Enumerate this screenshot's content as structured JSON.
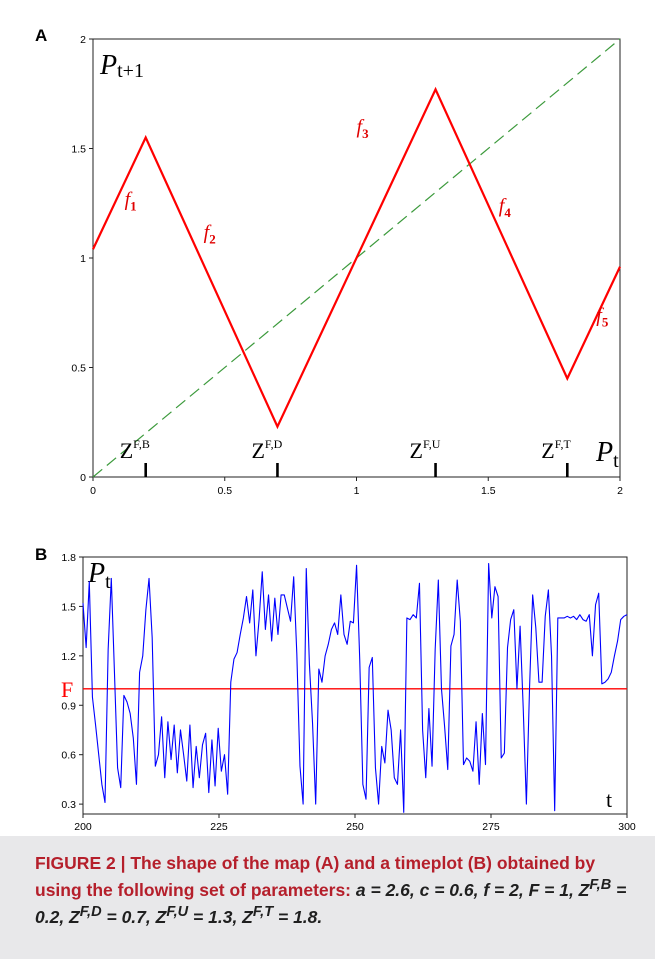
{
  "panel_a": {
    "label": "A",
    "ylabel_main": "P",
    "ylabel_sub": "t+1",
    "xlabel_main": "P",
    "xlabel_sub": "t",
    "x_ticks": [
      "0",
      "0.5",
      "1",
      "1.5",
      "2"
    ],
    "y_ticks": [
      "0",
      "0.5",
      "1",
      "1.5",
      "2"
    ],
    "piece_labels": [
      "1",
      "2",
      "3",
      "4",
      "5"
    ],
    "piece_letter": "f",
    "z_main": "Z",
    "z_sups": [
      "F,B",
      "F,D",
      "F,U",
      "F,T"
    ]
  },
  "panel_b": {
    "label": "B",
    "ylabel_main": "P",
    "ylabel_sub": "t",
    "xlabel": "t",
    "hline_label": "F",
    "x_ticks": [
      "200",
      "225",
      "250",
      "275",
      "300"
    ],
    "y_ticks": [
      "0.3",
      "0.6",
      "0.9",
      "1.2",
      "1.5",
      "1.8"
    ]
  },
  "caption": {
    "part1": "FIGURE 2 | The shape of the map (A) and a timeplot (B) obtained by using the following set of parameters:",
    "params": "a = 2.6, c = 0.6, f = 2, F = 1, Z",
    "sup1": "F,B",
    "v1": " = 0.2, Z",
    "sup2": "F,D",
    "v2": " = 0.7, Z",
    "sup3": "F,U",
    "v3": " = 1.3, Z",
    "sup4": "F,T",
    "v4": " = 1.8."
  },
  "colors": {
    "map": "#ff0000",
    "diagonal": "#3c9a3c",
    "series": "#0000ff",
    "fline": "#ff0000",
    "caption_accent": "#b51f2b"
  },
  "chart_data": [
    {
      "type": "line",
      "xlim": [
        0,
        2
      ],
      "ylim": [
        0,
        2
      ],
      "grid": false,
      "series": [
        {
          "x": [
            0,
            0.2,
            0.7,
            1.3,
            1.8,
            2
          ],
          "y": [
            1.04,
            1.55,
            0.23,
            1.77,
            0.45,
            0.96
          ]
        },
        {
          "x": [
            0,
            2
          ],
          "y": [
            0,
            2
          ]
        }
      ],
      "markers": [
        0.2,
        0.7,
        1.3,
        1.8
      ]
    },
    {
      "type": "line",
      "xlim": [
        200,
        300
      ],
      "ylim": [
        0.24,
        1.8
      ],
      "grid": false,
      "hline": 1,
      "series": [
        {
          "x_start": 200,
          "x_step": 1,
          "values": [
            1.52,
            1.25,
            1.65,
            0.95,
            0.78,
            0.6,
            0.42,
            0.31,
            1.24,
            1.67,
            1.1,
            0.52,
            0.4,
            0.96,
            0.92,
            0.85,
            0.7,
            0.42,
            1.1,
            1.2,
            1.48,
            1.67,
            1.31,
            0.53,
            0.6,
            0.83,
            0.46,
            0.8,
            0.57,
            0.78,
            0.49,
            0.75,
            0.6,
            0.44,
            0.78,
            0.4,
            0.65,
            0.46,
            0.66,
            0.73,
            0.37,
            0.69,
            0.41,
            0.76,
            0.5,
            0.6,
            0.36,
            1.04,
            1.18,
            1.22,
            1.33,
            1.43,
            1.56,
            1.4,
            1.6,
            1.2,
            1.42,
            1.71,
            1.36,
            1.57,
            1.29,
            1.55,
            1.33,
            1.57,
            1.57,
            1.49,
            1.41,
            1.68,
            1.21,
            0.53,
            0.3,
            1.73,
            1.15,
            0.79,
            0.3,
            1.12,
            1.04,
            1.2,
            1.27,
            1.36,
            1.4,
            1.33,
            1.57,
            1.33,
            1.27,
            1.41,
            1.4,
            1.75,
            1.18,
            0.42,
            0.33,
            1.13,
            1.19,
            0.52,
            0.3,
            0.65,
            0.55,
            0.87,
            0.75,
            0.46,
            0.42,
            0.75,
            0.25,
            1.43,
            1.42,
            1.45,
            1.43,
            1.64,
            0.75,
            0.46,
            0.88,
            0.53,
            1.24,
            1.66,
            1.0,
            0.77,
            0.51,
            1.26,
            1.33,
            1.66,
            1.41,
            0.54,
            0.58,
            0.56,
            0.5,
            0.8,
            0.42,
            0.85,
            0.54,
            1.76,
            1.43,
            1.62,
            1.56,
            0.58,
            0.61,
            1.25,
            1.42,
            1.48,
            1.0,
            1.38,
            0.88,
            0.3,
            1.0,
            1.57,
            1.37,
            1.04,
            1.04,
            1.44,
            1.6,
            1.2,
            0.26,
            1.43,
            1.43,
            1.43,
            1.44,
            1.43,
            1.44,
            1.42,
            1.45,
            1.42,
            1.41,
            1.45,
            1.2,
            1.51,
            1.58,
            1.03,
            1.04,
            1.06,
            1.1,
            1.2,
            1.29,
            1.42,
            1.44,
            1.45
          ]
        }
      ]
    }
  ]
}
